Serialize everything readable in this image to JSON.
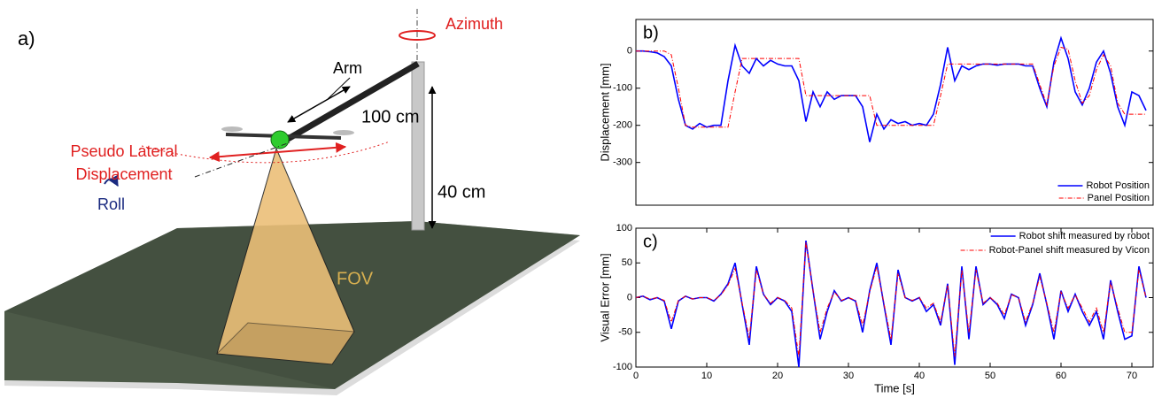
{
  "diagram": {
    "label": "a)",
    "azimuth": "Azimuth",
    "arm": "Arm",
    "arm_length": "100 cm",
    "height": "40 cm",
    "lateral": [
      "Pseudo Lateral",
      "Displacement"
    ],
    "roll": "Roll",
    "fov": "FOV"
  },
  "chart_data": [
    {
      "type": "line",
      "label": "b)",
      "ylabel": "Displacement [mm]",
      "xlim": [
        0,
        73
      ],
      "ylim": [
        -415,
        85
      ],
      "yticks": [
        0,
        -100,
        -200,
        -300
      ],
      "legend": "lower right",
      "x": [
        0,
        1,
        2,
        3,
        4,
        5,
        6,
        7,
        8,
        9,
        10,
        11,
        12,
        13,
        14,
        15,
        16,
        17,
        18,
        19,
        20,
        21,
        22,
        23,
        24,
        25,
        26,
        27,
        28,
        29,
        30,
        31,
        32,
        33,
        34,
        35,
        36,
        37,
        38,
        39,
        40,
        41,
        42,
        43,
        44,
        45,
        46,
        47,
        48,
        49,
        50,
        51,
        52,
        53,
        54,
        55,
        56,
        57,
        58,
        59,
        60,
        61,
        62,
        63,
        64,
        65,
        66,
        67,
        68,
        69,
        70,
        71,
        72
      ],
      "series": [
        {
          "name": "Robot Position",
          "color": "#0000ff",
          "linestyle": "solid",
          "values": [
            0,
            0,
            -2,
            -5,
            -15,
            -40,
            -130,
            -200,
            -210,
            -195,
            -205,
            -200,
            -200,
            -80,
            15,
            -40,
            -60,
            -20,
            -40,
            -25,
            -35,
            -40,
            -40,
            -80,
            -190,
            -110,
            -150,
            -110,
            -130,
            -120,
            -120,
            -120,
            -150,
            -245,
            -170,
            -210,
            -185,
            -195,
            -190,
            -200,
            -195,
            -200,
            -170,
            -90,
            10,
            -80,
            -40,
            -50,
            -40,
            -35,
            -35,
            -38,
            -35,
            -35,
            -35,
            -40,
            -40,
            -100,
            -150,
            -30,
            35,
            -20,
            -110,
            -145,
            -100,
            -30,
            0,
            -60,
            -150,
            -200,
            -110,
            -120,
            -160
          ]
        },
        {
          "name": "Panel Position",
          "color": "#ff0000",
          "linestyle": "dashdot",
          "values": [
            0,
            0,
            0,
            0,
            0,
            -10,
            -100,
            -200,
            -205,
            -205,
            -205,
            -205,
            -205,
            -205,
            -110,
            -20,
            -20,
            -20,
            -20,
            -20,
            -20,
            -20,
            -20,
            -20,
            -120,
            -120,
            -120,
            -120,
            -120,
            -120,
            -120,
            -120,
            -120,
            -120,
            -200,
            -200,
            -200,
            -200,
            -200,
            -200,
            -200,
            -200,
            -200,
            -120,
            -35,
            -35,
            -35,
            -35,
            -35,
            -35,
            -35,
            -35,
            -35,
            -35,
            -35,
            -35,
            -35,
            -90,
            -145,
            -40,
            10,
            5,
            -80,
            -140,
            -120,
            -50,
            -10,
            -40,
            -140,
            -170,
            -170,
            -170,
            -170
          ]
        }
      ]
    },
    {
      "type": "line",
      "label": "c)",
      "ylabel": "Visual Error [mm]",
      "xlabel": "Time [s]",
      "xlim": [
        0,
        73
      ],
      "ylim": [
        -100,
        100
      ],
      "xticks": [
        0,
        10,
        20,
        30,
        40,
        50,
        60,
        70
      ],
      "yticks": [
        -100,
        -50,
        0,
        50,
        100
      ],
      "legend": "upper right",
      "x": [
        0,
        1,
        2,
        3,
        4,
        5,
        6,
        7,
        8,
        9,
        10,
        11,
        12,
        13,
        14,
        15,
        16,
        17,
        18,
        19,
        20,
        21,
        22,
        23,
        24,
        25,
        26,
        27,
        28,
        29,
        30,
        31,
        32,
        33,
        34,
        35,
        36,
        37,
        38,
        39,
        40,
        41,
        42,
        43,
        44,
        45,
        46,
        47,
        48,
        49,
        50,
        51,
        52,
        53,
        54,
        55,
        56,
        57,
        58,
        59,
        60,
        61,
        62,
        63,
        64,
        65,
        66,
        67,
        68,
        69,
        70,
        71,
        72
      ],
      "series": [
        {
          "name": "Robot shift measured by robot",
          "color": "#0000ff",
          "linestyle": "solid",
          "values": [
            0,
            2,
            -3,
            0,
            -5,
            -45,
            -5,
            2,
            -2,
            0,
            0,
            -5,
            5,
            20,
            50,
            -10,
            -68,
            45,
            5,
            -10,
            0,
            -5,
            -20,
            -100,
            82,
            10,
            -60,
            -20,
            10,
            -5,
            0,
            -5,
            -50,
            10,
            50,
            -10,
            -68,
            40,
            0,
            -5,
            0,
            -20,
            -10,
            -40,
            20,
            -97,
            45,
            -60,
            45,
            -10,
            0,
            -10,
            -30,
            5,
            0,
            -40,
            -10,
            35,
            -10,
            -60,
            10,
            -20,
            5,
            -20,
            -40,
            -20,
            -60,
            25,
            -20,
            -60,
            -55,
            45,
            0
          ]
        },
        {
          "name": "Robot-Panel shift measured by Vicon",
          "color": "#ff0000",
          "linestyle": "dashdot",
          "values": [
            0,
            2,
            -2,
            0,
            -4,
            -35,
            -4,
            2,
            -2,
            0,
            0,
            -4,
            4,
            18,
            42,
            -8,
            -58,
            40,
            5,
            -8,
            0,
            -4,
            -15,
            -85,
            80,
            10,
            -50,
            -15,
            8,
            -4,
            0,
            -4,
            -40,
            8,
            45,
            -8,
            -60,
            35,
            0,
            -4,
            0,
            -15,
            -8,
            -35,
            18,
            -85,
            40,
            -50,
            40,
            -8,
            0,
            -8,
            -25,
            4,
            0,
            -35,
            -8,
            30,
            -8,
            -50,
            8,
            -15,
            4,
            -15,
            -35,
            -15,
            -50,
            22,
            -15,
            -50,
            -50,
            40,
            0
          ]
        }
      ]
    }
  ]
}
